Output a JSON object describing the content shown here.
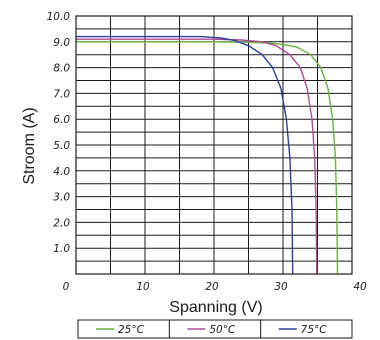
{
  "chart_data": {
    "type": "line",
    "xlabel": "Spanning (V)",
    "ylabel": "Stroom (A)",
    "xlim": [
      0,
      40
    ],
    "ylim": [
      0,
      10
    ],
    "x_ticks": [
      0,
      10,
      20,
      30,
      40
    ],
    "x_tick_labels": [
      "0",
      "10",
      "20",
      "30",
      "40"
    ],
    "y_ticks": [
      1,
      2,
      3,
      4,
      5,
      6,
      7,
      8,
      9,
      10
    ],
    "y_tick_labels": [
      "1.0",
      "2.0",
      "3.0",
      "4.0",
      "5.0",
      "6.0",
      "7.0",
      "8.0",
      "9.0",
      "10.0"
    ],
    "grid": true,
    "legend_position": "bottom",
    "series": [
      {
        "name": "25°C",
        "color": "#6ab33e",
        "points": [
          [
            0,
            9.0
          ],
          [
            10,
            9.0
          ],
          [
            20,
            9.0
          ],
          [
            25,
            8.98
          ],
          [
            28,
            8.95
          ],
          [
            30,
            8.9
          ],
          [
            32,
            8.8
          ],
          [
            34,
            8.5
          ],
          [
            35.5,
            8.0
          ],
          [
            36.5,
            7.2
          ],
          [
            37.2,
            6.0
          ],
          [
            37.6,
            4.5
          ],
          [
            37.8,
            2.5
          ],
          [
            37.9,
            0.0
          ]
        ]
      },
      {
        "name": "50°C",
        "color": "#b04a96",
        "points": [
          [
            0,
            9.1
          ],
          [
            10,
            9.1
          ],
          [
            20,
            9.1
          ],
          [
            24,
            9.07
          ],
          [
            27,
            9.0
          ],
          [
            29,
            8.85
          ],
          [
            31,
            8.5
          ],
          [
            32.5,
            8.0
          ],
          [
            33.5,
            7.2
          ],
          [
            34.2,
            6.0
          ],
          [
            34.6,
            4.5
          ],
          [
            34.8,
            2.5
          ],
          [
            34.9,
            0.0
          ]
        ]
      },
      {
        "name": "75°C",
        "color": "#2b3f9a",
        "points": [
          [
            0,
            9.2
          ],
          [
            10,
            9.2
          ],
          [
            18,
            9.2
          ],
          [
            21,
            9.15
          ],
          [
            23,
            9.05
          ],
          [
            25,
            8.85
          ],
          [
            27,
            8.5
          ],
          [
            28.5,
            8.0
          ],
          [
            29.7,
            7.2
          ],
          [
            30.5,
            6.0
          ],
          [
            31.0,
            4.5
          ],
          [
            31.3,
            2.5
          ],
          [
            31.4,
            0.0
          ]
        ]
      }
    ]
  }
}
